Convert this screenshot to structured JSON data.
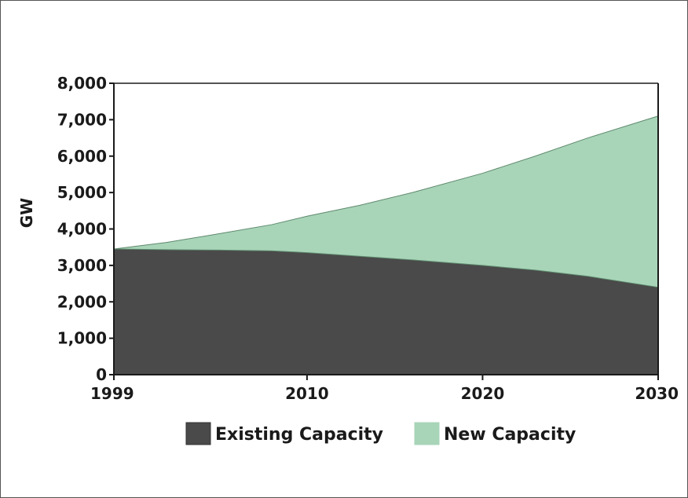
{
  "chart_data": {
    "type": "area",
    "stacked": true,
    "title": "",
    "xlabel": "",
    "ylabel": "GW",
    "x": [
      1999,
      2002,
      2005,
      2008,
      2010,
      2013,
      2016,
      2020,
      2023,
      2026,
      2030
    ],
    "x_ticks": [
      "1999",
      "2010",
      "2020",
      "2030"
    ],
    "x_tick_values": [
      1999,
      2010,
      2020,
      2030
    ],
    "y_ticks": [
      "0",
      "1,000",
      "2,000",
      "3,000",
      "4,000",
      "5,000",
      "6,000",
      "7,000",
      "8,000"
    ],
    "y_tick_values": [
      0,
      1000,
      2000,
      3000,
      4000,
      5000,
      6000,
      7000,
      8000
    ],
    "xlim": [
      1999,
      2030
    ],
    "ylim": [
      0,
      8000
    ],
    "grid": false,
    "legend_position": "bottom",
    "series": [
      {
        "name": "Existing Capacity",
        "color": "#4a4a4a",
        "values": [
          3450,
          3430,
          3420,
          3400,
          3350,
          3250,
          3150,
          3000,
          2870,
          2700,
          2400
        ]
      },
      {
        "name": "New Capacity",
        "color": "#a8d4b8",
        "values": [
          0,
          200,
          450,
          720,
          1000,
          1400,
          1850,
          2530,
          3130,
          3800,
          4700
        ]
      }
    ],
    "totals": [
      3450,
      3630,
      3870,
      4120,
      4350,
      4650,
      5000,
      5530,
      6000,
      6500,
      7100
    ]
  }
}
